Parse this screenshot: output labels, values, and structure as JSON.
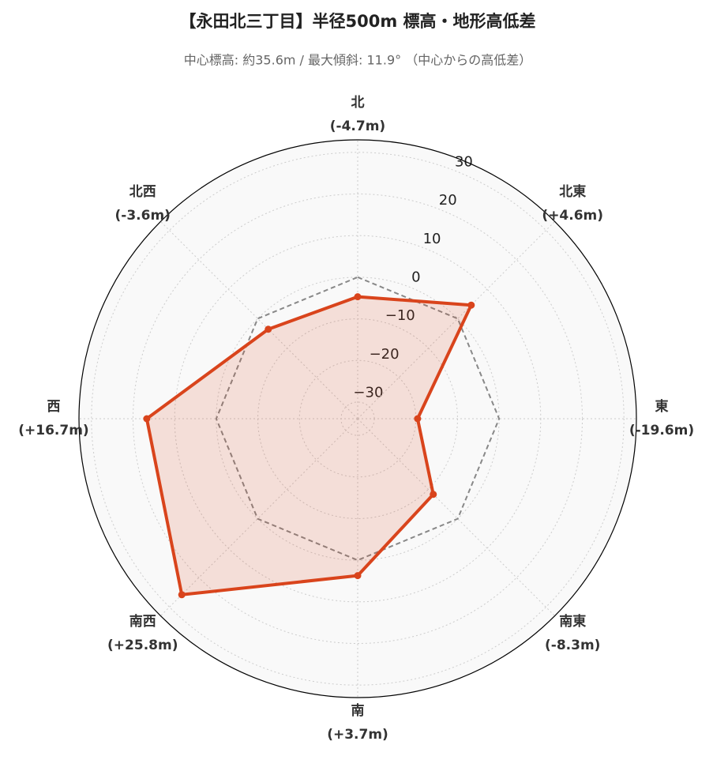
{
  "chart_data": {
    "type": "radar",
    "title": "【永田北三丁目】半径500m 標高・地形高低差",
    "subtitle": "中心標高: 約35.6m / 最大傾斜: 11.9° （中心からの高低差）",
    "categories": [
      "北",
      "北東",
      "東",
      "南東",
      "南",
      "南西",
      "西",
      "北西"
    ],
    "values": [
      -4.7,
      4.6,
      -19.6,
      -8.3,
      3.7,
      25.8,
      16.7,
      -3.6
    ],
    "value_labels": [
      "(-4.7m)",
      "(+4.6m)",
      "(-19.6m)",
      "(-8.3m)",
      "(+3.7m)",
      "(+25.8m)",
      "(+16.7m)",
      "(-3.6m)"
    ],
    "color": "#d9441c",
    "baseline": 0,
    "ylim": [
      -34,
      33
    ],
    "yticks": [
      {
        "value": -30,
        "label": "−30"
      },
      {
        "value": -20,
        "label": "−20"
      },
      {
        "value": -10,
        "label": "−10"
      },
      0,
      10,
      20,
      30
    ],
    "grid": true
  }
}
